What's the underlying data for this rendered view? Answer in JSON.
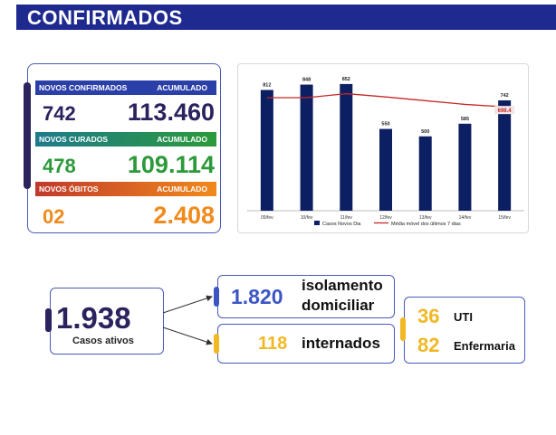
{
  "banner": {
    "title": "CONFIRMADOS"
  },
  "panel": {
    "confirmados": {
      "label": "NOVOS CONFIRMADOS",
      "acum_label": "ACUMULADO",
      "novo": "742",
      "acumulado": "113.460"
    },
    "curados": {
      "label": "NOVOS CURADOS",
      "acum_label": "ACUMULADO",
      "novo": "478",
      "acumulado": "109.114"
    },
    "obitos": {
      "label": "NOVOS ÓBITOS",
      "acum_label": "ACUMULADO",
      "novo": "02",
      "acumulado": "2.408"
    }
  },
  "chart_data": {
    "type": "bar",
    "categories": [
      "09/fev",
      "10/fev",
      "11/fev",
      "12/fev",
      "13/fev",
      "14/fev",
      "15/fev"
    ],
    "series": [
      {
        "name": "Casos Novos Dia",
        "type": "bar",
        "values": [
          812,
          848,
          852,
          550,
          500,
          585,
          742
        ],
        "labels": [
          "812",
          "848",
          "852",
          "550",
          "500",
          "585",
          "742"
        ]
      },
      {
        "name": "Média móvel dos últimos 7 dias",
        "type": "line",
        "values": [
          760,
          760,
          787,
          765,
          740,
          715,
          698.4
        ],
        "last_label": "698.4"
      }
    ],
    "ylim": [
      0,
      900
    ],
    "legend": "bottom",
    "colors": {
      "bar": "#0d1f63",
      "line": "#c62828"
    }
  },
  "summary": {
    "ativos": {
      "value": "1.938",
      "label": "Casos ativos"
    },
    "isolamento": {
      "value": "1.820",
      "label1": "isolamento",
      "label2": "domiciliar"
    },
    "internados": {
      "value": "118",
      "label": "internados"
    },
    "uti": {
      "value": "36",
      "label": "UTI"
    },
    "enfermaria": {
      "value": "82",
      "label": "Enfermaria"
    }
  },
  "colors": {
    "navy": "#1e2a8f",
    "dark": "#2a235e",
    "green": "#2c9a3a",
    "orange": "#f08a1c",
    "yellow": "#f2b824",
    "blue": "#3b56c4"
  }
}
